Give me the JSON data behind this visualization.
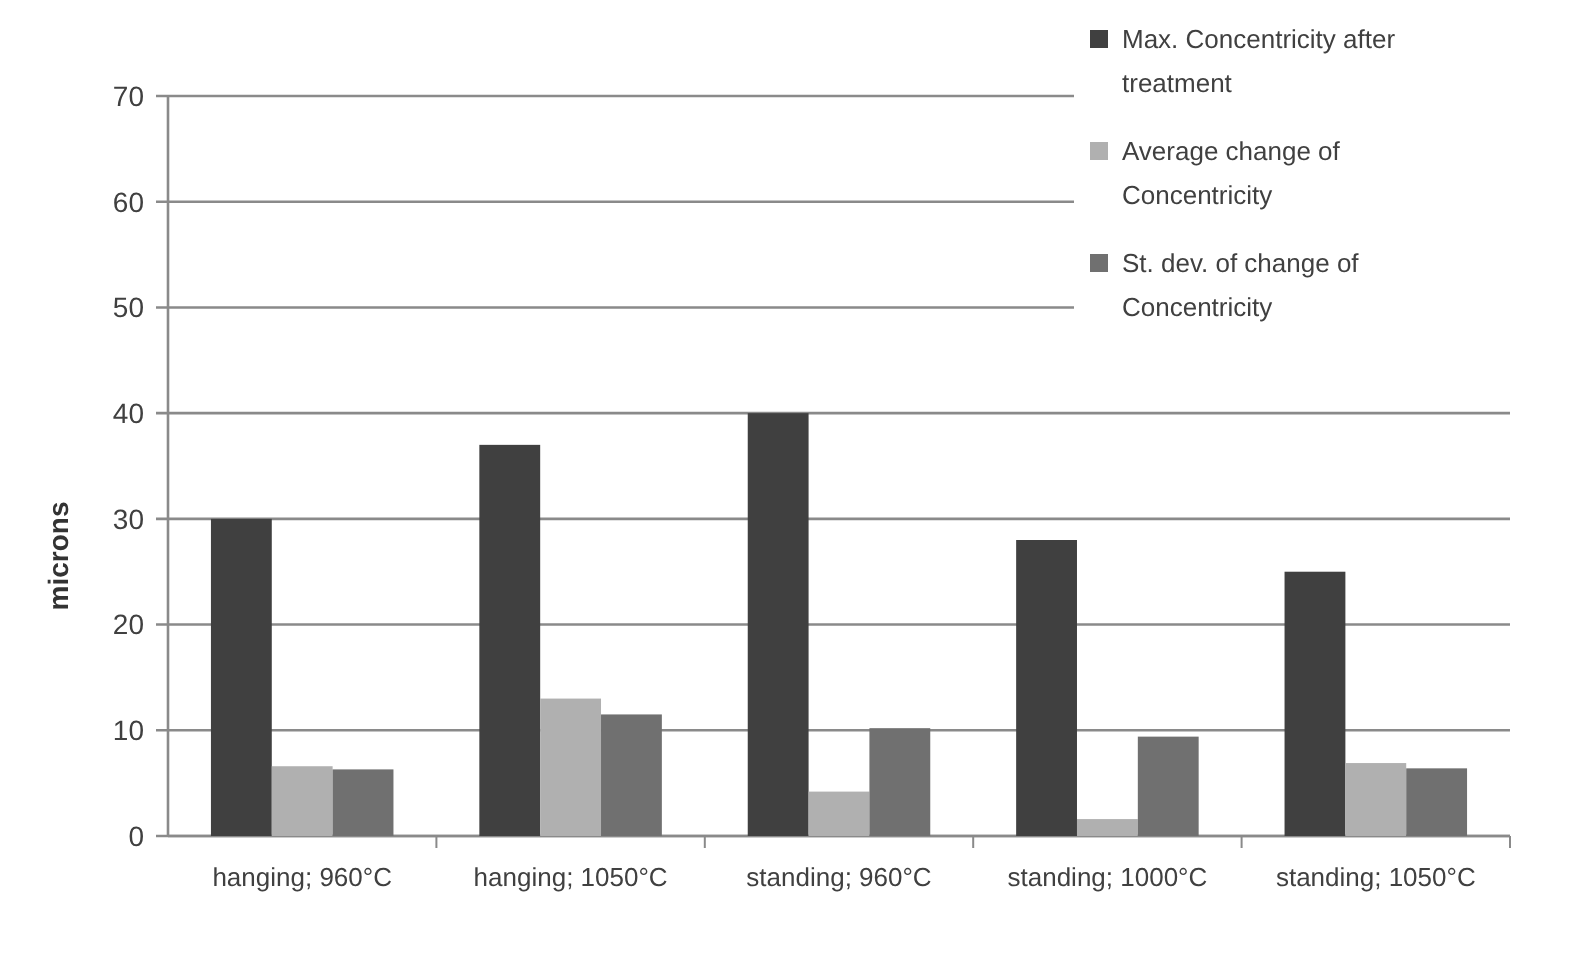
{
  "chart_data": {
    "type": "bar",
    "ylabel": "microns",
    "categories": [
      "hanging; 960°C",
      "hanging; 1050°C",
      "standing; 960°C",
      "standing; 1000°C",
      "standing; 1050°C"
    ],
    "series": [
      {
        "name": "Max. Concentricity after treatment",
        "color": "#404040",
        "values": [
          30,
          37,
          40,
          28,
          25
        ]
      },
      {
        "name": "Average change of Concentricity",
        "color": "#b0b0b0",
        "values": [
          6.6,
          13,
          4.2,
          1.6,
          6.9
        ]
      },
      {
        "name": "St. dev. of change of Concentricity",
        "color": "#707070",
        "values": [
          6.3,
          11.5,
          10.2,
          9.4,
          6.4
        ]
      }
    ],
    "ylim": [
      0,
      70
    ],
    "yticks": [
      0,
      10,
      20,
      30,
      40,
      50,
      60,
      70
    ],
    "grid": "y",
    "legend": "top right"
  }
}
